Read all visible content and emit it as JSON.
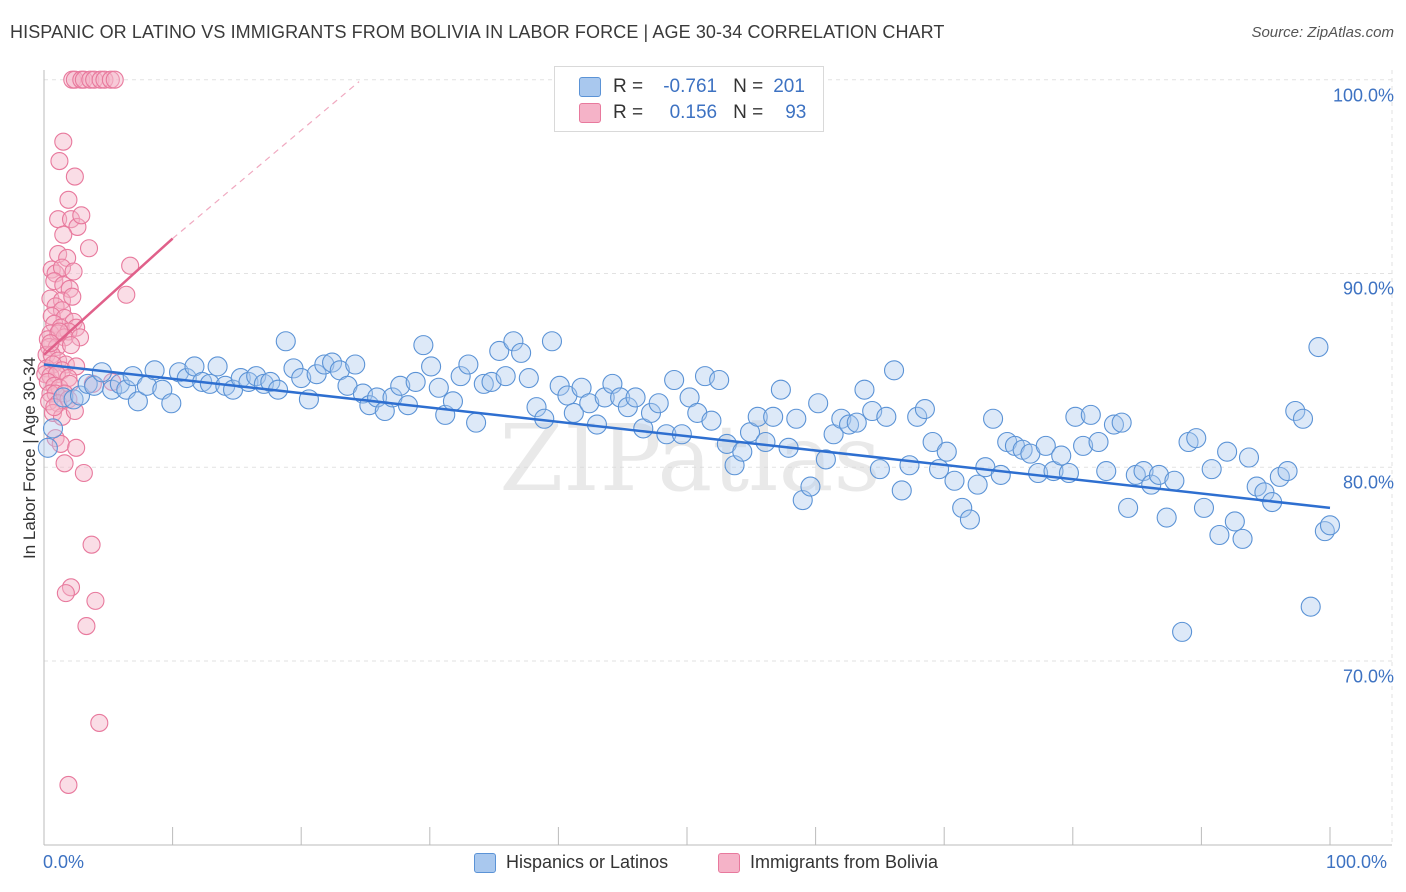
{
  "title": "HISPANIC OR LATINO VS IMMIGRANTS FROM BOLIVIA IN LABOR FORCE | AGE 30-34 CORRELATION CHART",
  "source": "Source: ZipAtlas.com",
  "watermark": "ZIPatlas",
  "legend": {
    "rows": [
      {
        "r_label": "R =",
        "r_value": "-0.761",
        "n_label": "N =",
        "n_value": "201"
      },
      {
        "r_label": "R =",
        "r_value": "0.156",
        "n_label": "N =",
        "n_value": "93"
      }
    ]
  },
  "colors": {
    "blue_fill": "#a9c8ee",
    "blue_stroke": "#5b93d6",
    "blue_line": "#2e6fd0",
    "pink_fill": "#f5b3c8",
    "pink_stroke": "#e8799d",
    "pink_line": "#e0608a",
    "tick_text": "#3d72c2",
    "grid": "#e2e2e2"
  },
  "chart_data": {
    "type": "scatter",
    "title": "HISPANIC OR LATINO VS IMMIGRANTS FROM BOLIVIA IN LABOR FORCE | AGE 30-34 CORRELATION CHART",
    "xlabel": "",
    "ylabel": "In Labor Force | Age 30-34",
    "xlim": [
      0,
      100
    ],
    "ylim": [
      60.5,
      100.5
    ],
    "x_tick_labels": [
      "0.0%",
      "100.0%"
    ],
    "y_ticks": [
      70,
      80,
      90,
      100
    ],
    "y_tick_labels": [
      "70.0%",
      "80.0%",
      "90.0%",
      "100.0%"
    ],
    "grid": true,
    "legend_position": "top-center",
    "series": [
      {
        "name": "Hispanics or Latinos",
        "color": "#a9c8ee",
        "R": -0.761,
        "N": 201,
        "trend": {
          "x": [
            0,
            100
          ],
          "y": [
            85.3,
            77.9
          ]
        },
        "points": [
          [
            0.3,
            81.0
          ],
          [
            0.7,
            82.0
          ],
          [
            1.5,
            83.6
          ],
          [
            2.3,
            83.5
          ],
          [
            2.8,
            83.7
          ],
          [
            3.4,
            84.3
          ],
          [
            3.9,
            84.2
          ],
          [
            4.5,
            84.9
          ],
          [
            5.3,
            84.0
          ],
          [
            5.9,
            84.3
          ],
          [
            6.4,
            84.0
          ],
          [
            6.9,
            84.7
          ],
          [
            7.3,
            83.4
          ],
          [
            8.0,
            84.2
          ],
          [
            8.6,
            85.0
          ],
          [
            9.2,
            84.0
          ],
          [
            9.9,
            83.3
          ],
          [
            10.5,
            84.9
          ],
          [
            11.1,
            84.6
          ],
          [
            11.7,
            85.2
          ],
          [
            12.3,
            84.4
          ],
          [
            12.9,
            84.3
          ],
          [
            13.5,
            85.2
          ],
          [
            14.1,
            84.2
          ],
          [
            14.7,
            84.0
          ],
          [
            15.3,
            84.6
          ],
          [
            15.9,
            84.4
          ],
          [
            16.5,
            84.7
          ],
          [
            17.1,
            84.3
          ],
          [
            17.6,
            84.4
          ],
          [
            18.2,
            84.0
          ],
          [
            18.8,
            86.5
          ],
          [
            19.4,
            85.1
          ],
          [
            20.0,
            84.6
          ],
          [
            20.6,
            83.5
          ],
          [
            21.2,
            84.8
          ],
          [
            21.8,
            85.3
          ],
          [
            22.4,
            85.4
          ],
          [
            23.0,
            85.0
          ],
          [
            23.6,
            84.2
          ],
          [
            24.2,
            85.3
          ],
          [
            24.8,
            83.8
          ],
          [
            25.3,
            83.2
          ],
          [
            25.9,
            83.6
          ],
          [
            26.5,
            82.9
          ],
          [
            27.1,
            83.6
          ],
          [
            27.7,
            84.2
          ],
          [
            28.3,
            83.2
          ],
          [
            28.9,
            84.4
          ],
          [
            29.5,
            86.3
          ],
          [
            30.1,
            85.2
          ],
          [
            30.7,
            84.1
          ],
          [
            31.2,
            82.7
          ],
          [
            31.8,
            83.4
          ],
          [
            32.4,
            84.7
          ],
          [
            33.0,
            85.3
          ],
          [
            33.6,
            82.3
          ],
          [
            34.2,
            84.3
          ],
          [
            34.8,
            84.4
          ],
          [
            35.4,
            86.0
          ],
          [
            35.9,
            84.7
          ],
          [
            36.5,
            86.5
          ],
          [
            37.1,
            85.9
          ],
          [
            37.7,
            84.6
          ],
          [
            38.3,
            83.1
          ],
          [
            38.9,
            82.5
          ],
          [
            39.5,
            86.5
          ],
          [
            40.1,
            84.2
          ],
          [
            40.7,
            83.7
          ],
          [
            41.2,
            82.8
          ],
          [
            41.8,
            84.1
          ],
          [
            42.4,
            83.3
          ],
          [
            43.0,
            82.2
          ],
          [
            43.6,
            83.6
          ],
          [
            44.2,
            84.3
          ],
          [
            44.8,
            83.6
          ],
          [
            45.4,
            83.1
          ],
          [
            46.0,
            83.6
          ],
          [
            46.6,
            82.0
          ],
          [
            47.2,
            82.8
          ],
          [
            47.8,
            83.3
          ],
          [
            48.4,
            81.7
          ],
          [
            49.0,
            84.5
          ],
          [
            49.6,
            81.7
          ],
          [
            50.2,
            83.6
          ],
          [
            50.8,
            82.8
          ],
          [
            51.4,
            84.7
          ],
          [
            51.9,
            82.4
          ],
          [
            52.5,
            84.5
          ],
          [
            53.1,
            81.2
          ],
          [
            53.7,
            80.1
          ],
          [
            54.3,
            80.8
          ],
          [
            54.9,
            81.8
          ],
          [
            55.5,
            82.6
          ],
          [
            56.1,
            81.3
          ],
          [
            56.7,
            82.6
          ],
          [
            57.3,
            84.0
          ],
          [
            57.9,
            81.0
          ],
          [
            58.5,
            82.5
          ],
          [
            59.0,
            78.3
          ],
          [
            59.6,
            79.0
          ],
          [
            60.2,
            83.3
          ],
          [
            60.8,
            80.4
          ],
          [
            61.4,
            81.7
          ],
          [
            62.0,
            82.5
          ],
          [
            62.6,
            82.2
          ],
          [
            63.2,
            82.3
          ],
          [
            63.8,
            84.0
          ],
          [
            64.4,
            82.9
          ],
          [
            65.0,
            79.9
          ],
          [
            65.5,
            82.6
          ],
          [
            66.1,
            85.0
          ],
          [
            66.7,
            78.8
          ],
          [
            67.3,
            80.1
          ],
          [
            67.9,
            82.6
          ],
          [
            68.5,
            83.0
          ],
          [
            69.1,
            81.3
          ],
          [
            69.6,
            79.9
          ],
          [
            70.2,
            80.8
          ],
          [
            70.8,
            79.3
          ],
          [
            71.4,
            77.9
          ],
          [
            72.0,
            77.3
          ],
          [
            72.6,
            79.1
          ],
          [
            73.2,
            80.0
          ],
          [
            73.8,
            82.5
          ],
          [
            74.4,
            79.6
          ],
          [
            74.9,
            81.3
          ],
          [
            75.5,
            81.1
          ],
          [
            76.1,
            80.9
          ],
          [
            76.7,
            80.7
          ],
          [
            77.3,
            79.7
          ],
          [
            77.9,
            81.1
          ],
          [
            78.5,
            79.8
          ],
          [
            79.1,
            80.6
          ],
          [
            79.7,
            79.7
          ],
          [
            80.2,
            82.6
          ],
          [
            80.8,
            81.1
          ],
          [
            81.4,
            82.7
          ],
          [
            82.0,
            81.3
          ],
          [
            82.6,
            79.8
          ],
          [
            83.2,
            82.2
          ],
          [
            83.8,
            82.3
          ],
          [
            84.3,
            77.9
          ],
          [
            84.9,
            79.6
          ],
          [
            85.5,
            79.8
          ],
          [
            86.1,
            79.1
          ],
          [
            86.7,
            79.6
          ],
          [
            87.3,
            77.4
          ],
          [
            87.9,
            79.3
          ],
          [
            88.5,
            71.5
          ],
          [
            89.0,
            81.3
          ],
          [
            89.6,
            81.5
          ],
          [
            90.2,
            77.9
          ],
          [
            90.8,
            79.9
          ],
          [
            91.4,
            76.5
          ],
          [
            92.0,
            80.8
          ],
          [
            92.6,
            77.2
          ],
          [
            93.2,
            76.3
          ],
          [
            93.7,
            80.5
          ],
          [
            94.3,
            79.0
          ],
          [
            94.9,
            78.7
          ],
          [
            95.5,
            78.2
          ],
          [
            96.1,
            79.5
          ],
          [
            96.7,
            79.8
          ],
          [
            97.3,
            82.9
          ],
          [
            97.9,
            82.5
          ],
          [
            98.5,
            72.8
          ],
          [
            99.1,
            86.2
          ],
          [
            99.6,
            76.7
          ],
          [
            100.0,
            77.0
          ]
        ]
      },
      {
        "name": "Immigrants from Bolivia",
        "color": "#f5b3c8",
        "R": 0.156,
        "N": 93,
        "trend": {
          "x": [
            0,
            10
          ],
          "y": [
            85.8,
            91.8
          ]
        },
        "trend_dashed": {
          "x": [
            10,
            24.5
          ],
          "y": [
            91.8,
            99.9
          ]
        },
        "points": [
          [
            2.2,
            100.0
          ],
          [
            2.4,
            100.0
          ],
          [
            2.9,
            100.0
          ],
          [
            3.1,
            100.0
          ],
          [
            3.6,
            100.0
          ],
          [
            3.9,
            100.0
          ],
          [
            4.4,
            100.0
          ],
          [
            4.7,
            100.0
          ],
          [
            5.2,
            100.0
          ],
          [
            5.5,
            100.0
          ],
          [
            1.5,
            96.8
          ],
          [
            1.2,
            95.8
          ],
          [
            2.4,
            95.0
          ],
          [
            1.9,
            93.8
          ],
          [
            1.1,
            92.8
          ],
          [
            2.1,
            92.8
          ],
          [
            2.6,
            92.4
          ],
          [
            1.5,
            92.0
          ],
          [
            2.9,
            93.0
          ],
          [
            3.5,
            91.3
          ],
          [
            1.1,
            91.0
          ],
          [
            1.8,
            90.8
          ],
          [
            0.6,
            90.2
          ],
          [
            0.9,
            90.0
          ],
          [
            1.4,
            90.3
          ],
          [
            2.3,
            90.1
          ],
          [
            6.7,
            90.4
          ],
          [
            0.8,
            89.6
          ],
          [
            1.5,
            89.4
          ],
          [
            2.0,
            89.2
          ],
          [
            0.5,
            88.7
          ],
          [
            1.4,
            88.6
          ],
          [
            2.2,
            88.8
          ],
          [
            6.4,
            88.9
          ],
          [
            0.9,
            88.3
          ],
          [
            1.4,
            88.1
          ],
          [
            0.6,
            87.8
          ],
          [
            1.6,
            87.7
          ],
          [
            2.3,
            87.5
          ],
          [
            0.8,
            87.4
          ],
          [
            1.3,
            87.2
          ],
          [
            2.5,
            87.2
          ],
          [
            0.5,
            86.9
          ],
          [
            1.1,
            86.9
          ],
          [
            1.9,
            87.0
          ],
          [
            0.3,
            86.6
          ],
          [
            1.6,
            86.7
          ],
          [
            2.8,
            86.7
          ],
          [
            0.4,
            86.2
          ],
          [
            1.0,
            86.2
          ],
          [
            2.1,
            86.3
          ],
          [
            0.2,
            85.8
          ],
          [
            0.6,
            85.8
          ],
          [
            1.1,
            85.5
          ],
          [
            1.7,
            85.3
          ],
          [
            0.2,
            85.1
          ],
          [
            0.7,
            85.3
          ],
          [
            1.4,
            85.0
          ],
          [
            2.5,
            85.2
          ],
          [
            0.1,
            84.8
          ],
          [
            0.5,
            84.7
          ],
          [
            1.0,
            84.8
          ],
          [
            1.9,
            84.6
          ],
          [
            0.3,
            84.4
          ],
          [
            0.8,
            84.2
          ],
          [
            1.2,
            84.1
          ],
          [
            2.0,
            84.3
          ],
          [
            3.8,
            84.3
          ],
          [
            5.3,
            84.4
          ],
          [
            0.5,
            83.8
          ],
          [
            0.9,
            83.8
          ],
          [
            1.6,
            83.8
          ],
          [
            0.4,
            83.4
          ],
          [
            1.1,
            83.3
          ],
          [
            1.9,
            83.5
          ],
          [
            0.7,
            82.8
          ],
          [
            1.4,
            82.6
          ],
          [
            2.4,
            82.9
          ],
          [
            0.9,
            81.5
          ],
          [
            1.3,
            81.2
          ],
          [
            2.5,
            81.0
          ],
          [
            1.6,
            80.2
          ],
          [
            3.1,
            79.7
          ],
          [
            3.7,
            76.0
          ],
          [
            2.1,
            73.8
          ],
          [
            1.7,
            73.5
          ],
          [
            4.0,
            73.1
          ],
          [
            3.3,
            71.8
          ],
          [
            4.3,
            66.8
          ],
          [
            1.9,
            63.6
          ],
          [
            1.2,
            87.0
          ],
          [
            0.5,
            86.4
          ],
          [
            0.8,
            83.1
          ]
        ]
      }
    ]
  },
  "bottom_legend": [
    {
      "label": "Hispanics or Latinos"
    },
    {
      "label": "Immigrants from Bolivia"
    }
  ]
}
